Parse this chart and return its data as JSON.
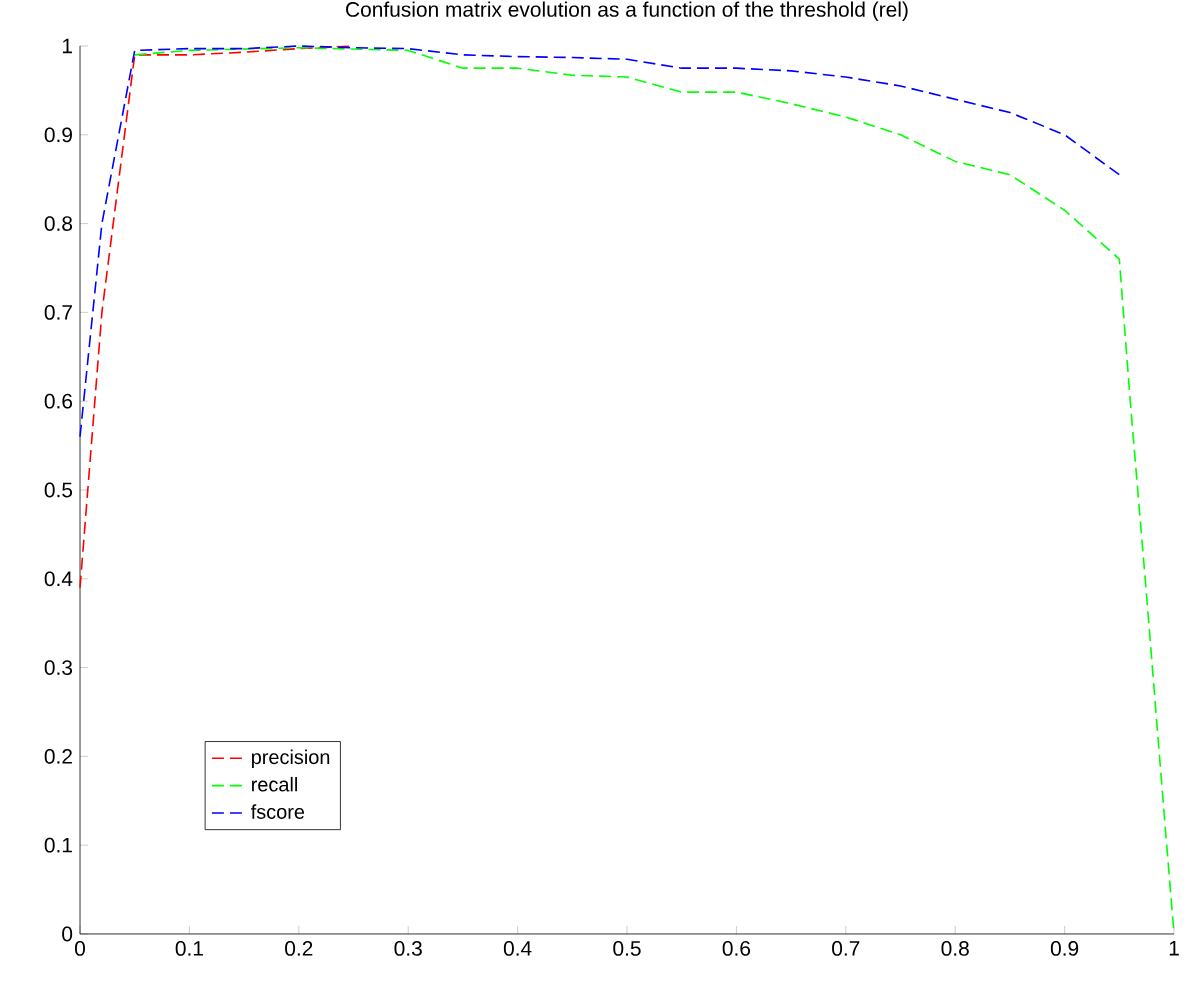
{
  "chart_data": {
    "type": "line",
    "title": "Confusion matrix evolution as a function of the threshold (rel)",
    "xlim": [
      0,
      1
    ],
    "ylim": [
      0,
      1
    ],
    "xticks": [
      0,
      0.1,
      0.2,
      0.3,
      0.4,
      0.5,
      0.6,
      0.7,
      0.8,
      0.9,
      1
    ],
    "yticks": [
      0,
      0.1,
      0.2,
      0.3,
      0.4,
      0.5,
      0.6,
      0.7,
      0.8,
      0.9,
      1
    ],
    "grid": false,
    "legend": "bottom left",
    "line_style": "dashed",
    "marker": "none",
    "series": [
      {
        "name": "precision",
        "color": "#ff0000",
        "x": [
          0,
          0.02,
          0.05,
          0.1,
          0.15,
          0.2,
          0.25
        ],
        "values": [
          0.39,
          0.7,
          0.99,
          0.99,
          0.993,
          0.997,
          1.0
        ]
      },
      {
        "name": "recall",
        "color": "#00ff00",
        "x": [
          0.05,
          0.1,
          0.2,
          0.3,
          0.35,
          0.4,
          0.45,
          0.5,
          0.55,
          0.6,
          0.65,
          0.7,
          0.75,
          0.8,
          0.85,
          0.9,
          0.95,
          0.96,
          0.975,
          0.99,
          1.0
        ],
        "values": [
          0.99,
          0.995,
          0.998,
          0.995,
          0.975,
          0.975,
          0.967,
          0.965,
          0.948,
          0.948,
          0.935,
          0.92,
          0.9,
          0.87,
          0.855,
          0.815,
          0.76,
          0.6,
          0.38,
          0.15,
          0
        ]
      },
      {
        "name": "fscore",
        "color": "#0000ff",
        "x": [
          0,
          0.02,
          0.05,
          0.1,
          0.15,
          0.2,
          0.25,
          0.3,
          0.35,
          0.4,
          0.45,
          0.5,
          0.55,
          0.6,
          0.65,
          0.7,
          0.75,
          0.8,
          0.85,
          0.9,
          0.95
        ],
        "values": [
          0.56,
          0.8,
          0.995,
          0.997,
          0.997,
          1.0,
          0.998,
          0.997,
          0.99,
          0.988,
          0.987,
          0.985,
          0.975,
          0.975,
          0.972,
          0.965,
          0.955,
          0.94,
          0.925,
          0.9,
          0.855
        ]
      }
    ]
  }
}
